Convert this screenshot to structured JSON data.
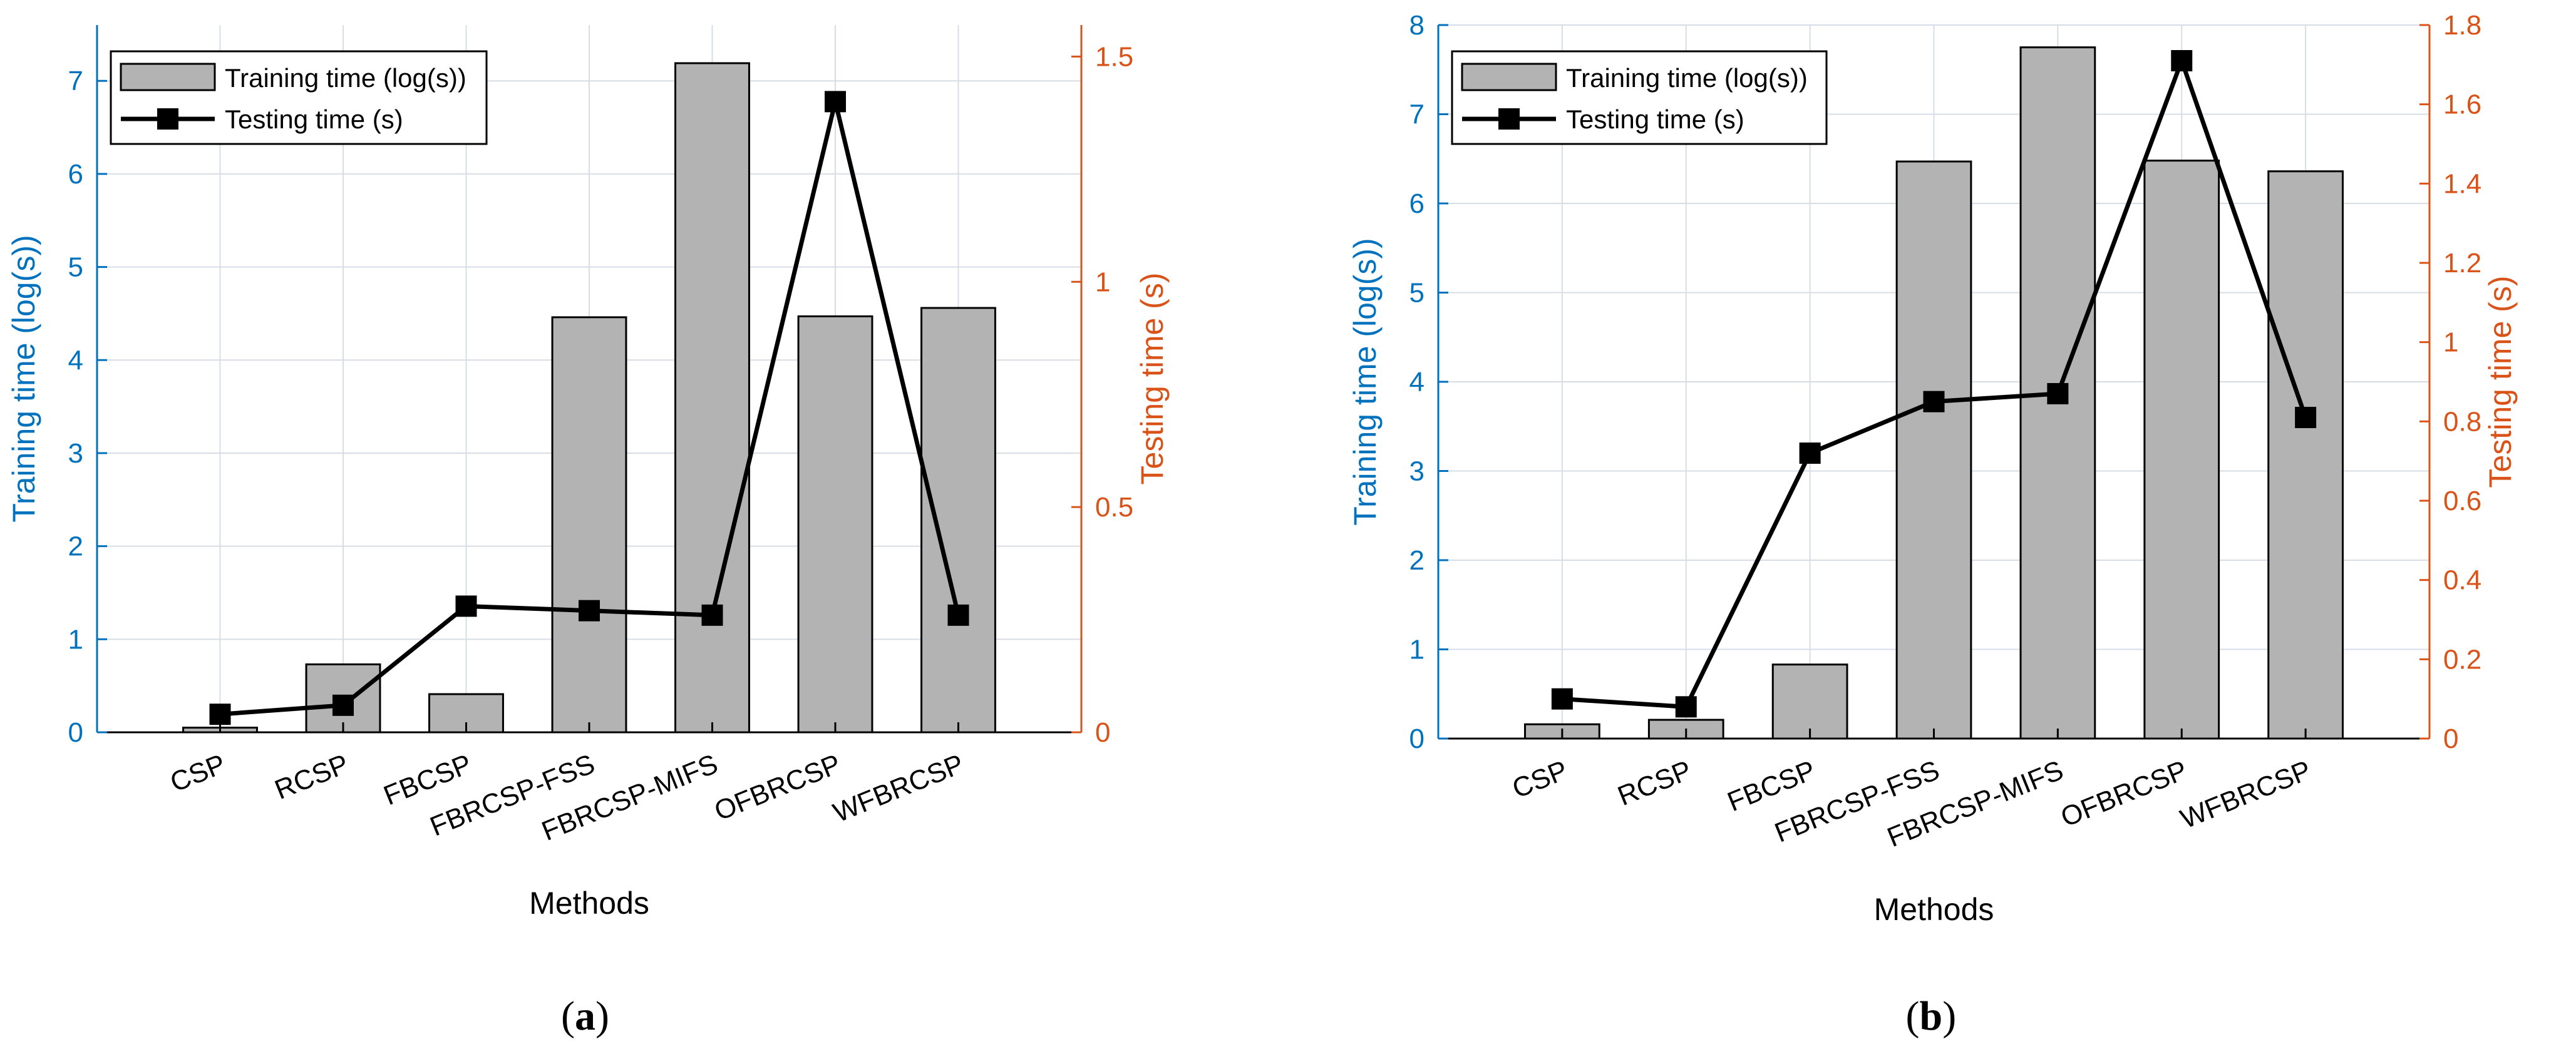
{
  "chart_data": [
    {
      "id": "a",
      "type": "bar+line",
      "caption_letter": "a",
      "categories": [
        "CSP",
        "RCSP",
        "FBCSP",
        "FBRCSP-FSS",
        "FBRCSP-MIFS",
        "OFBRCSP",
        "WFBRCSP"
      ],
      "series": [
        {
          "name": "Training time (log(s))",
          "type": "bar",
          "axis": "left",
          "values": [
            0.05,
            0.73,
            0.41,
            4.46,
            7.19,
            4.47,
            4.56
          ]
        },
        {
          "name": "Testing time (s)",
          "type": "line",
          "axis": "right",
          "values": [
            0.04,
            0.06,
            0.28,
            0.27,
            0.26,
            1.4,
            0.26
          ]
        }
      ],
      "xlabel": "Methods",
      "ylabel": "Training time (log(s))",
      "ylabel_right": "Testing time (s)",
      "ylim": [
        0,
        7.6
      ],
      "ylim_right": [
        0,
        1.57
      ],
      "yticks": [
        0,
        1,
        2,
        3,
        4,
        5,
        6,
        7
      ],
      "yticks_right": [
        0,
        0.5,
        1,
        1.5
      ],
      "yticklabels_right": [
        "0",
        "0.5",
        "1",
        "1.5"
      ],
      "grid": true,
      "legend_position": "top-left"
    },
    {
      "id": "b",
      "type": "bar+line",
      "caption_letter": "b",
      "categories": [
        "CSP",
        "RCSP",
        "FBCSP",
        "FBRCSP-FSS",
        "FBRCSP-MIFS",
        "OFBRCSP",
        "WFBRCSP"
      ],
      "series": [
        {
          "name": "Training time (log(s))",
          "type": "bar",
          "axis": "left",
          "values": [
            0.16,
            0.21,
            0.83,
            6.47,
            7.75,
            6.48,
            6.36
          ]
        },
        {
          "name": "Testing time (s)",
          "type": "line",
          "axis": "right",
          "values": [
            0.1,
            0.08,
            0.72,
            0.85,
            0.87,
            1.71,
            0.81
          ]
        }
      ],
      "xlabel": "Methods",
      "ylabel": "Training time (log(s))",
      "ylabel_right": "Testing time (s)",
      "ylim": [
        0,
        8
      ],
      "ylim_right": [
        0,
        1.8
      ],
      "yticks": [
        0,
        1,
        2,
        3,
        4,
        5,
        6,
        7,
        8
      ],
      "yticks_right": [
        0,
        0.2,
        0.4,
        0.6,
        0.8,
        1,
        1.2,
        1.4,
        1.6,
        1.8
      ],
      "yticklabels_right": [
        "0",
        "0.2",
        "0.4",
        "0.6",
        "0.8",
        "1",
        "1.2",
        "1.4",
        "1.6",
        "1.8"
      ],
      "grid": true,
      "legend_position": "top-left"
    }
  ],
  "colors": {
    "left_axis": "#0072BD",
    "right_axis": "#D95319",
    "bar_fill": "#B3B3B3",
    "line": "#000000",
    "grid": "#D7DDE6"
  }
}
